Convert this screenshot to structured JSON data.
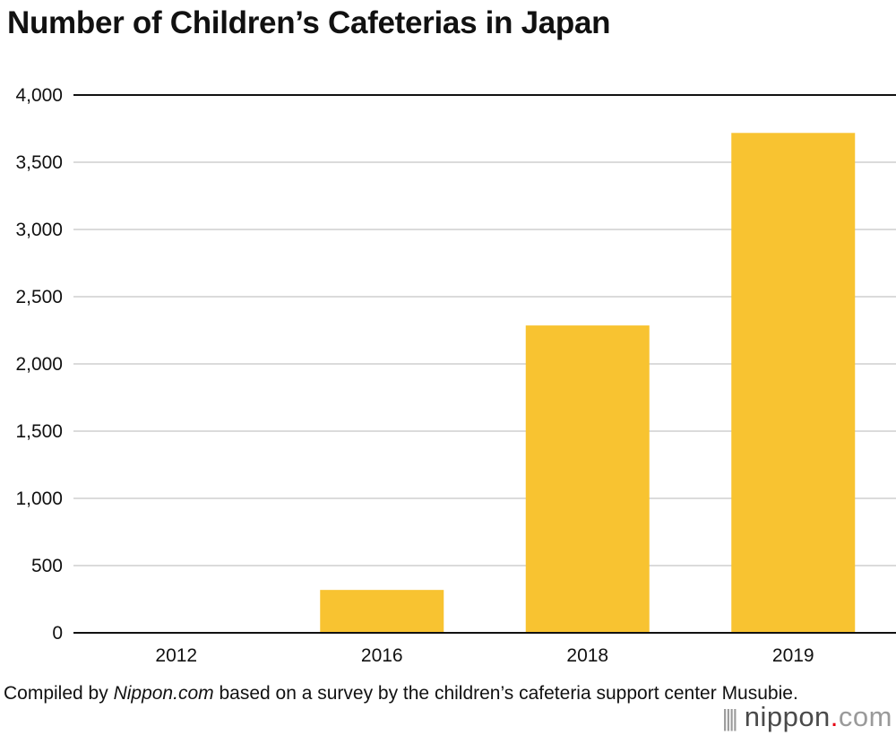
{
  "chart_data": {
    "type": "bar",
    "title": "Number of Children’s Cafeterias in Japan",
    "categories": [
      "2012",
      "2016",
      "2018",
      "2019"
    ],
    "values": [
      0,
      319,
      2286,
      3718
    ],
    "ylim": [
      0,
      4000
    ],
    "yticks": [
      "0",
      "500",
      "1,000",
      "1,500",
      "2,000",
      "2,500",
      "3,000",
      "3,500",
      "4,000"
    ],
    "ytick_values": [
      0,
      500,
      1000,
      1500,
      2000,
      2500,
      3000,
      3500,
      4000
    ],
    "grid": true,
    "bar_color": "#F8C331",
    "gridline_color": "#cfcfcf"
  },
  "source": {
    "prefix": "Compiled by ",
    "site": "Nippon.com",
    "suffix": " based on a survey by the children’s cafeteria support center Musubie."
  },
  "logo": {
    "bars": "||||",
    "name": "nippon",
    "dot": ".",
    "tld": "com"
  }
}
